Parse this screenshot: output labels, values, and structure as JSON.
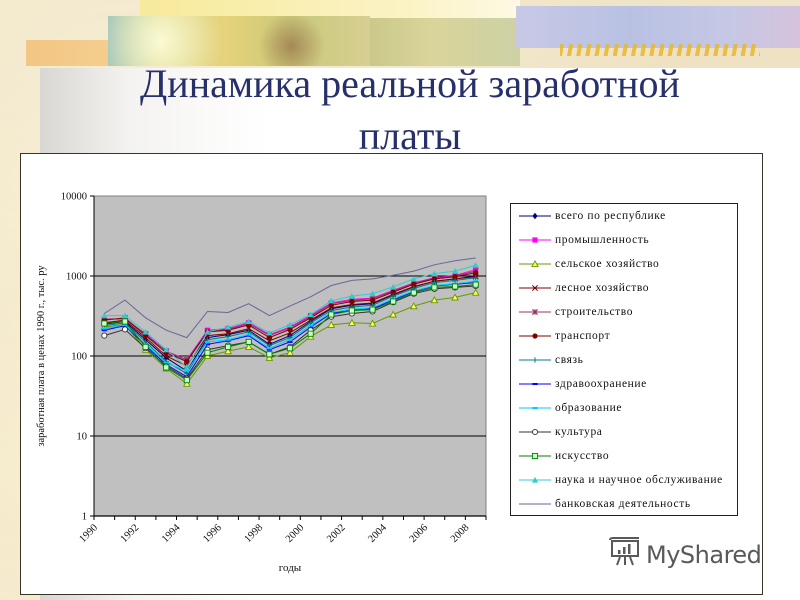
{
  "slide": {
    "title_line1": "Динамика реальной заработной",
    "title_line2": "платы"
  },
  "watermark": {
    "text": "MyShared",
    "icon": "presentation-board-icon"
  },
  "chart_data": {
    "type": "line",
    "title": "Динамика реальной заработной платы",
    "xlabel": "годы",
    "ylabel": "заработная плата в ценах 1990 г., тыс. ру",
    "yscale": "log",
    "ylim": [
      1,
      10000
    ],
    "y_ticks": [
      "10000",
      "1000",
      "100",
      "10",
      "1"
    ],
    "x_tick_labels": [
      "1990",
      "1992",
      "1994",
      "1996",
      "1998",
      "2000",
      "2002",
      "2004",
      "2006",
      "2008"
    ],
    "x": [
      1990,
      1991,
      1992,
      1993,
      1994,
      1995,
      1996,
      1997,
      1998,
      1999,
      2000,
      2001,
      2002,
      2003,
      2004,
      2005,
      2006,
      2007,
      2008
    ],
    "grid": {
      "horizontal": true,
      "vertical": false
    },
    "plot_background": "#c0c0c0",
    "legend_position": "right",
    "series": [
      {
        "name": "всего по республике",
        "color": "#000080",
        "marker": "diamond",
        "values": [
          250,
          270,
          160,
          95,
          65,
          170,
          185,
          210,
          140,
          180,
          270,
          390,
          430,
          450,
          580,
          730,
          860,
          920,
          1000
        ]
      },
      {
        "name": "промышленность",
        "color": "#ff00ff",
        "marker": "square",
        "values": [
          290,
          290,
          190,
          115,
          90,
          210,
          220,
          260,
          185,
          230,
          320,
          460,
          510,
          530,
          660,
          820,
          950,
          1020,
          1200
        ]
      },
      {
        "name": "сельское хозяйство",
        "color": "#669900",
        "marker": "triangle",
        "values": [
          230,
          250,
          120,
          70,
          45,
          100,
          115,
          130,
          95,
          110,
          175,
          245,
          260,
          255,
          330,
          420,
          500,
          540,
          620
        ]
      },
      {
        "name": "лесное хозяйство",
        "color": "#800000",
        "marker": "x",
        "values": [
          260,
          280,
          170,
          100,
          75,
          180,
          190,
          220,
          155,
          195,
          280,
          400,
          440,
          460,
          590,
          740,
          860,
          920,
          980
        ]
      },
      {
        "name": "строительство",
        "color": "#993366",
        "marker": "star",
        "values": [
          280,
          300,
          185,
          115,
          88,
          205,
          215,
          255,
          180,
          225,
          310,
          450,
          495,
          520,
          650,
          810,
          940,
          1000,
          1150
        ]
      },
      {
        "name": "транспорт",
        "color": "#800000",
        "marker": "circle-filled",
        "values": [
          285,
          295,
          180,
          110,
          85,
          200,
          210,
          245,
          170,
          215,
          300,
          430,
          480,
          500,
          630,
          790,
          920,
          980,
          1100
        ]
      },
      {
        "name": "связь",
        "color": "#008080",
        "marker": "plus",
        "values": [
          240,
          260,
          150,
          85,
          60,
          160,
          175,
          200,
          135,
          170,
          260,
          370,
          410,
          430,
          560,
          700,
          830,
          880,
          950
        ]
      },
      {
        "name": "здравоохранение",
        "color": "#0000ff",
        "marker": "dash",
        "values": [
          210,
          240,
          135,
          78,
          55,
          140,
          155,
          180,
          120,
          150,
          230,
          340,
          375,
          390,
          500,
          640,
          750,
          790,
          830
        ]
      },
      {
        "name": "образование",
        "color": "#00ccff",
        "marker": "dash",
        "values": [
          220,
          245,
          140,
          82,
          65,
          150,
          160,
          185,
          125,
          160,
          240,
          350,
          385,
          400,
          520,
          650,
          760,
          800,
          860
        ]
      },
      {
        "name": "культура",
        "color": "#333333",
        "marker": "circle-open",
        "values": [
          180,
          215,
          125,
          75,
          52,
          120,
          135,
          150,
          105,
          130,
          210,
          310,
          340,
          360,
          470,
          600,
          690,
          720,
          750
        ]
      },
      {
        "name": "искусство",
        "color": "#008000",
        "marker": "square-open",
        "values": [
          255,
          270,
          130,
          72,
          50,
          110,
          130,
          150,
          105,
          125,
          190,
          330,
          370,
          380,
          480,
          620,
          720,
          740,
          780
        ]
      },
      {
        "name": "наука и научное обслуживание",
        "color": "#33cccc",
        "marker": "triangle-filled",
        "values": [
          320,
          320,
          200,
          120,
          72,
          200,
          230,
          270,
          195,
          245,
          330,
          490,
          560,
          600,
          730,
          920,
          1070,
          1150,
          1370
        ]
      },
      {
        "name": "банковская деятельность",
        "color": "#666699",
        "marker": "none",
        "values": [
          340,
          500,
          300,
          210,
          170,
          360,
          350,
          450,
          320,
          420,
          550,
          760,
          880,
          920,
          1020,
          1150,
          1380,
          1550,
          1680
        ]
      }
    ]
  }
}
